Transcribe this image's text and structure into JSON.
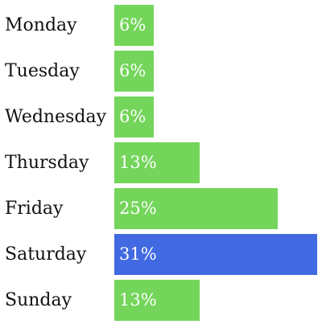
{
  "chart_data": {
    "type": "bar",
    "orientation": "horizontal",
    "categories": [
      "Monday",
      "Tuesday",
      "Wednesday",
      "Thursday",
      "Friday",
      "Saturday",
      "Sunday"
    ],
    "values": [
      6,
      6,
      6,
      13,
      25,
      31,
      13
    ],
    "value_labels": [
      "6%",
      "6%",
      "6%",
      "13%",
      "25%",
      "31%",
      "13%"
    ],
    "unit": "%",
    "xlim": [
      0,
      31
    ],
    "grid": false,
    "legend": "none",
    "colors": {
      "default": "#73d55a",
      "highlight": "#4169e1"
    },
    "highlight_category": "Saturday"
  }
}
